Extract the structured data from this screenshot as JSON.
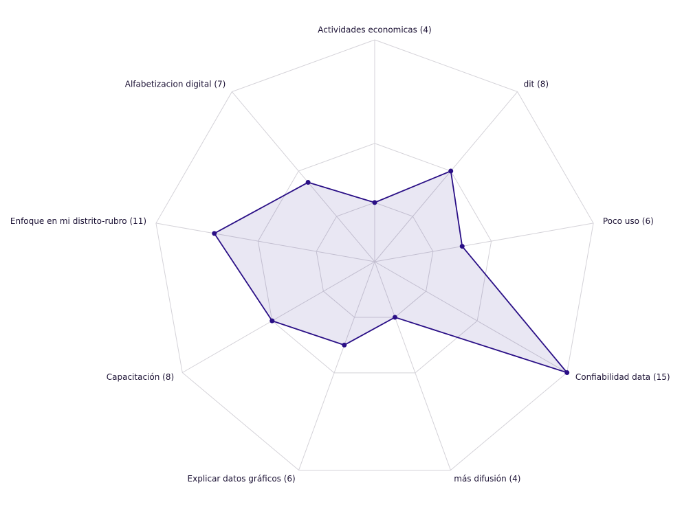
{
  "chart_data": {
    "type": "radar",
    "categories": [
      "Actividades economicas (4)",
      "dit (8)",
      "Poco uso (6)",
      "Confiabilidad data (15)",
      "más difusión (4)",
      "Explicar datos gráficos (6)",
      "Capacitación (8)",
      "Enfoque en mi distrito-rubro (11)",
      "Alfabetizacion digital (7)"
    ],
    "values": [
      4,
      8,
      6,
      15,
      4,
      6,
      8,
      11,
      7
    ],
    "color": "#2a0f86",
    "rlim": [
      0,
      15
    ],
    "rticks": [
      4,
      8,
      15
    ]
  }
}
